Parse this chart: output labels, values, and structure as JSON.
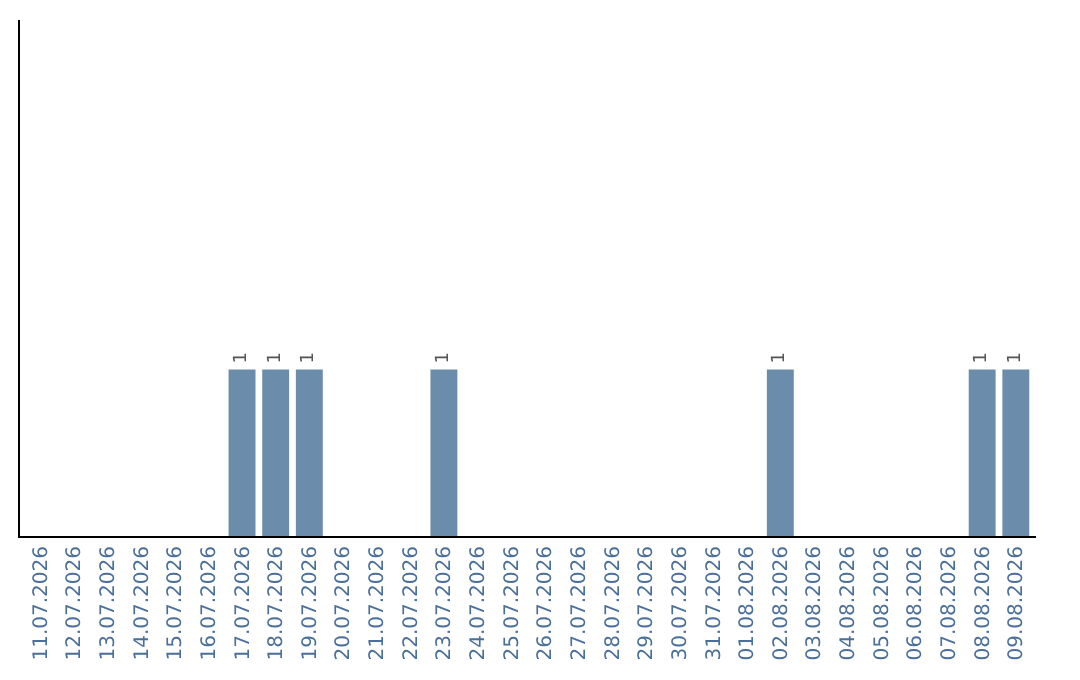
{
  "chart_data": {
    "type": "bar",
    "categories": [
      "11.07.2026",
      "12.07.2026",
      "13.07.2026",
      "14.07.2026",
      "15.07.2026",
      "16.07.2026",
      "17.07.2026",
      "18.07.2026",
      "19.07.2026",
      "20.07.2026",
      "21.07.2026",
      "22.07.2026",
      "23.07.2026",
      "24.07.2026",
      "25.07.2026",
      "26.07.2026",
      "27.07.2026",
      "28.07.2026",
      "29.07.2026",
      "30.07.2026",
      "31.07.2026",
      "01.08.2026",
      "02.08.2026",
      "03.08.2026",
      "04.08.2026",
      "05.08.2026",
      "06.08.2026",
      "07.08.2026",
      "08.08.2026",
      "09.08.2026"
    ],
    "values": [
      0,
      0,
      0,
      0,
      0,
      0,
      1,
      1,
      1,
      0,
      0,
      0,
      1,
      0,
      0,
      0,
      0,
      0,
      0,
      0,
      0,
      0,
      1,
      0,
      0,
      0,
      0,
      0,
      1,
      1
    ],
    "value_labels": [
      null,
      null,
      null,
      null,
      null,
      null,
      "1",
      "1",
      "1",
      null,
      null,
      null,
      "1",
      null,
      null,
      null,
      null,
      null,
      null,
      null,
      null,
      null,
      "1",
      null,
      null,
      null,
      null,
      null,
      "1",
      "1"
    ],
    "color": "#6b8cab",
    "ylim": [
      0,
      3.1
    ],
    "tick_labels": "x"
  }
}
